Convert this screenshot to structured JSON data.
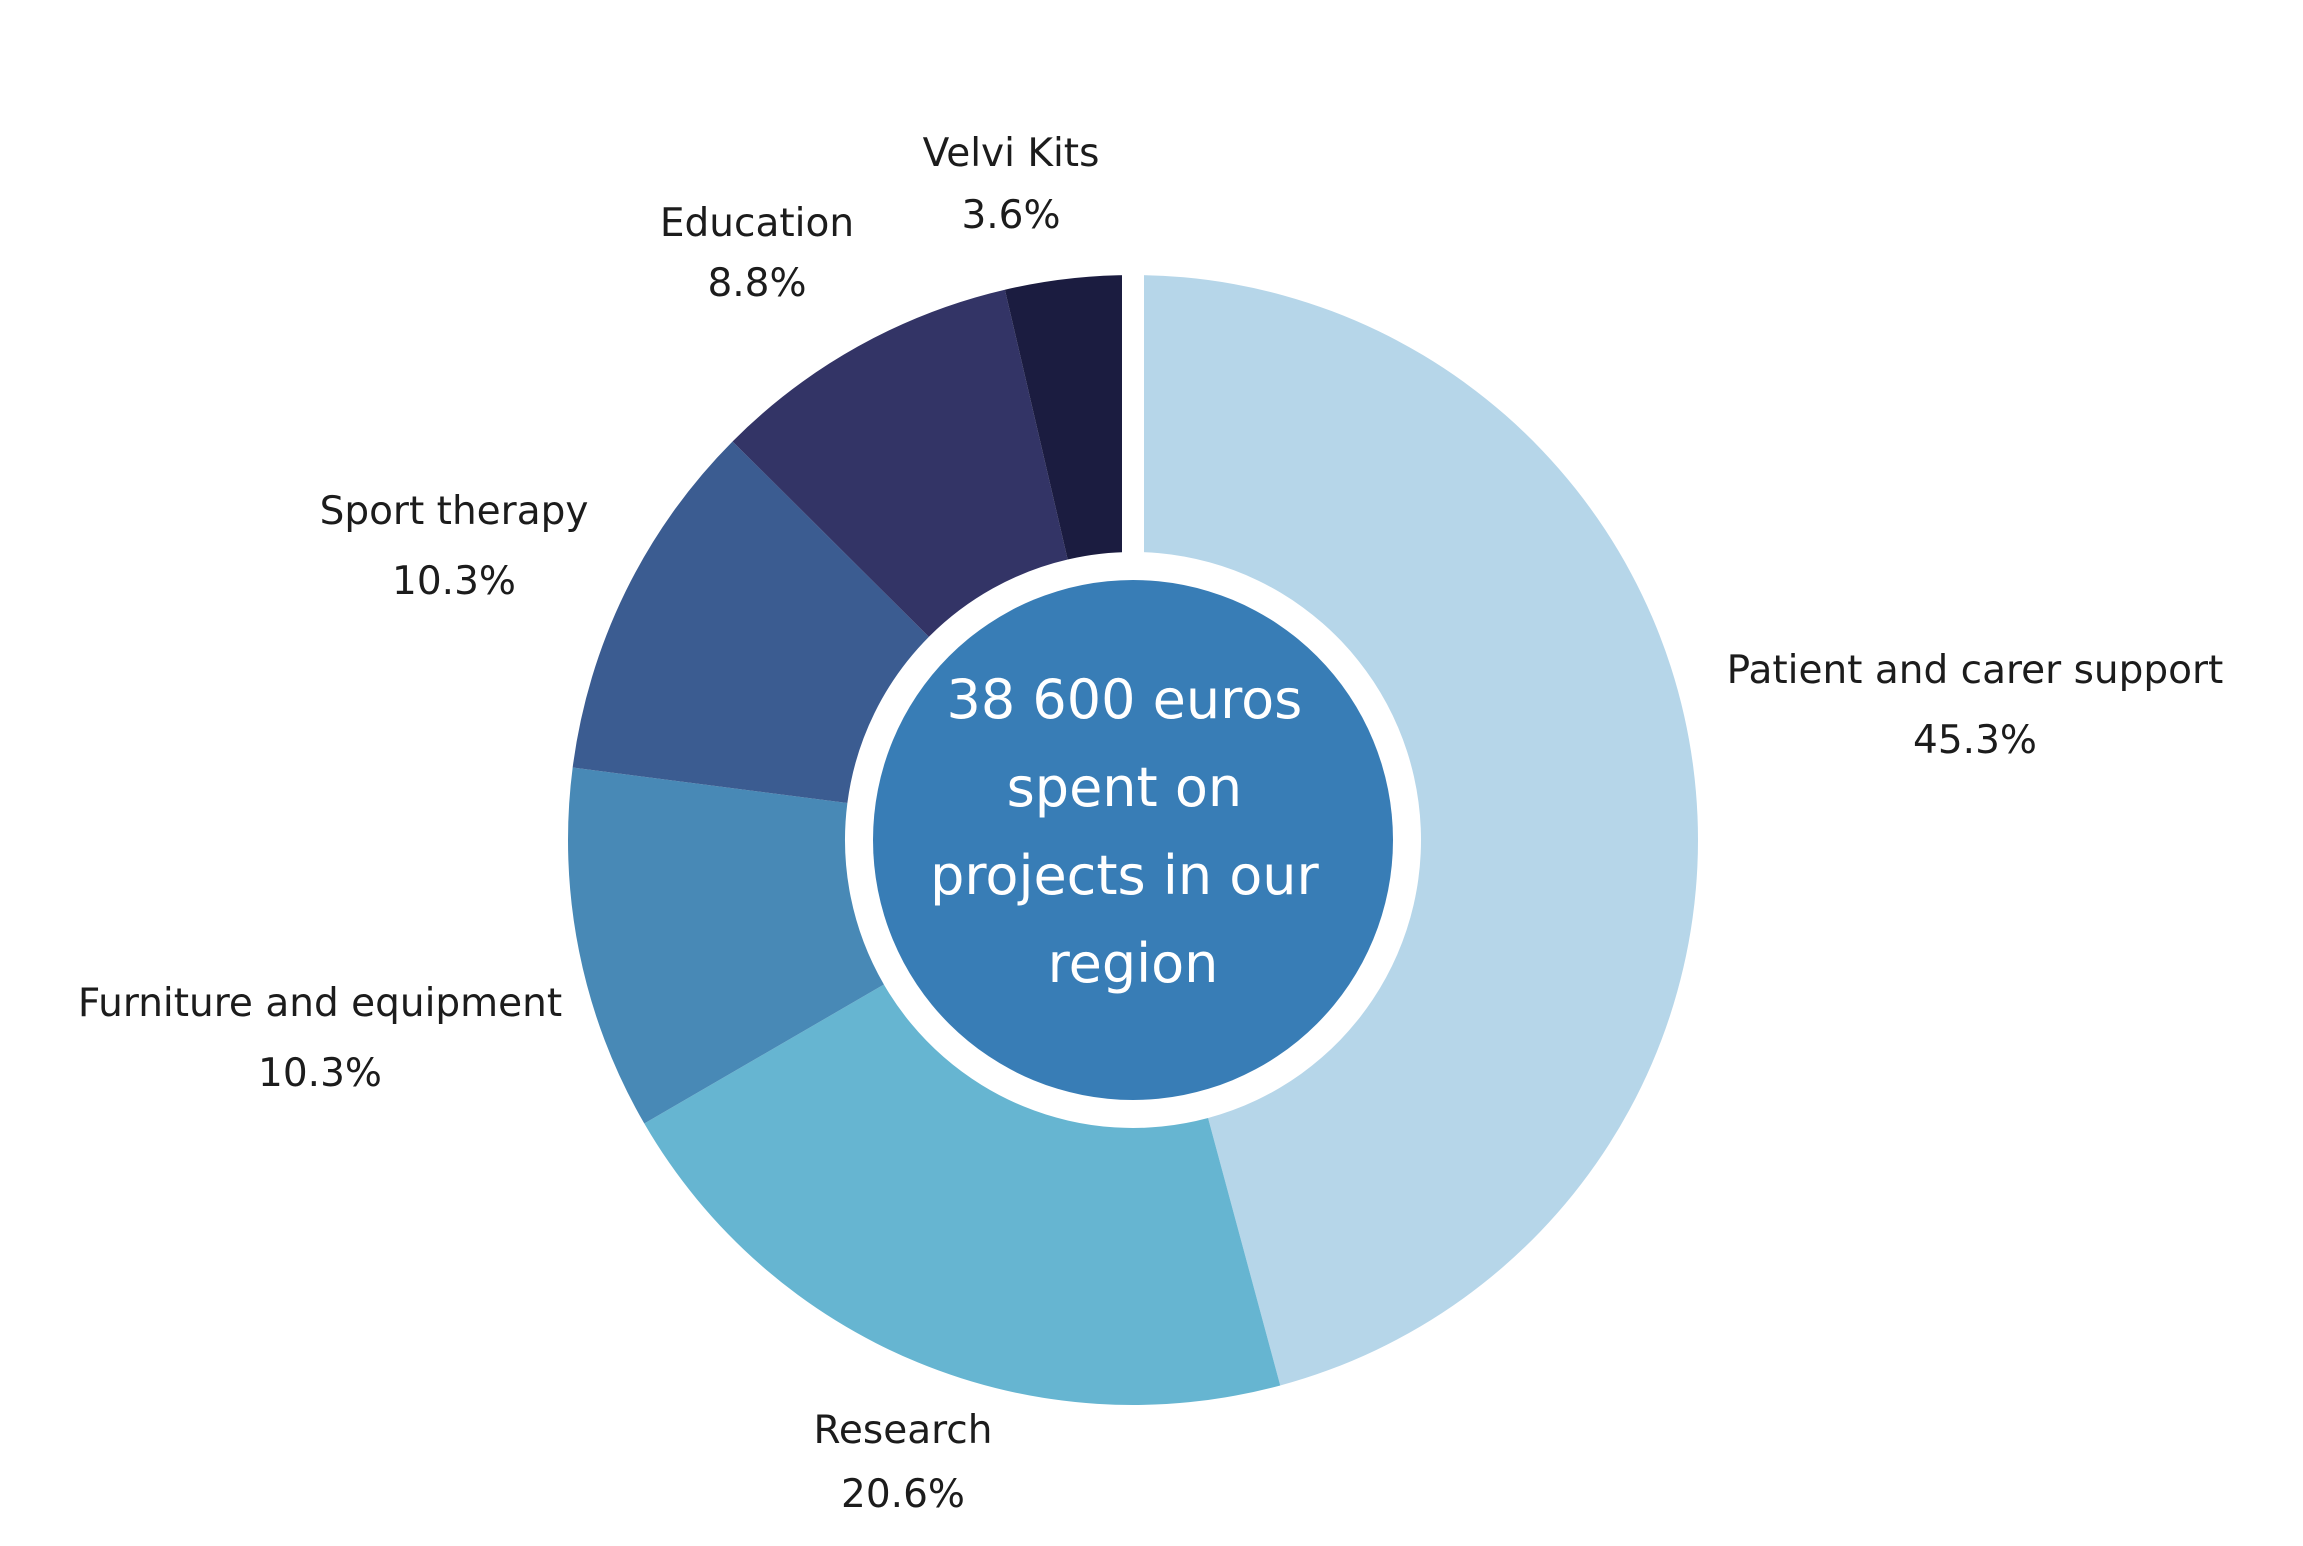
{
  "chart_data": {
    "type": "pie",
    "title": "",
    "categories": [
      "Patient and carer support",
      "Research",
      "Furniture and equipment",
      "Sport therapy",
      "Education",
      "Velvi Kits"
    ],
    "values": [
      45.3,
      20.6,
      10.3,
      10.3,
      8.8,
      3.6
    ],
    "value_labels": [
      "45.3%",
      "20.6%",
      "10.3%",
      "10.3%",
      "8.8%",
      "3.6%"
    ],
    "colors": [
      "#b6d6e9",
      "#66b5d1",
      "#4889b6",
      "#3b5c91",
      "#333466",
      "#1b1c40"
    ],
    "center_label": [
      "38 600 euros",
      "spent on",
      "projects in our",
      "region"
    ],
    "center_color": "#387db6",
    "legend": "none"
  }
}
